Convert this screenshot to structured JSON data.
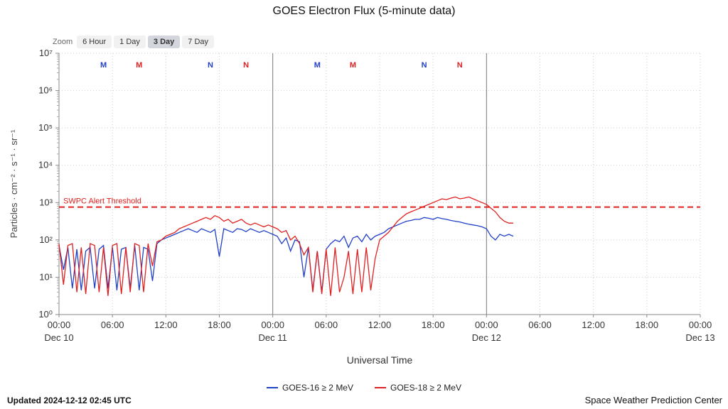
{
  "toolbar": {
    "zoom_label": "Zoom",
    "zoom_options": [
      {
        "label": "6 Hour",
        "selected": false
      },
      {
        "label": "1 Day",
        "selected": false
      },
      {
        "label": "3 Day",
        "selected": true
      },
      {
        "label": "7 Day",
        "selected": false
      }
    ]
  },
  "chart_data": {
    "type": "line",
    "title": "GOES Electron Flux (5-minute data)",
    "xlabel": "Universal Time",
    "ylabel": "Particles · cm⁻² · s⁻¹ · sr⁻¹",
    "x_axis": {
      "unit": "hours since Dec 10 00:00 UTC",
      "min": 0,
      "max": 72,
      "ticks": [
        {
          "hour": 0,
          "time": "00:00",
          "date": "Dec 10"
        },
        {
          "hour": 6,
          "time": "06:00"
        },
        {
          "hour": 12,
          "time": "12:00"
        },
        {
          "hour": 18,
          "time": "18:00"
        },
        {
          "hour": 24,
          "time": "00:00",
          "date": "Dec 11"
        },
        {
          "hour": 30,
          "time": "06:00"
        },
        {
          "hour": 36,
          "time": "12:00"
        },
        {
          "hour": 42,
          "time": "18:00"
        },
        {
          "hour": 48,
          "time": "00:00",
          "date": "Dec 12"
        },
        {
          "hour": 54,
          "time": "06:00"
        },
        {
          "hour": 60,
          "time": "12:00"
        },
        {
          "hour": 66,
          "time": "18:00"
        },
        {
          "hour": 72,
          "time": "00:00",
          "date": "Dec 13"
        }
      ],
      "day_boundaries": [
        24,
        48
      ]
    },
    "y_axis": {
      "scale": "log10",
      "min_exp": 0,
      "max_exp": 7,
      "tick_labels": [
        "10⁰",
        "10¹",
        "10²",
        "10³",
        "10⁴",
        "10⁵",
        "10⁶",
        "10⁷"
      ]
    },
    "threshold": {
      "label": "SWPC Alert Threshold",
      "log10_value": 2.88,
      "color": "#e02020"
    },
    "satellite_markers": [
      {
        "label": "M",
        "hour": 5,
        "color": "#2040c8"
      },
      {
        "label": "M",
        "hour": 9,
        "color": "#e02020"
      },
      {
        "label": "N",
        "hour": 17,
        "color": "#2040c8"
      },
      {
        "label": "N",
        "hour": 21,
        "color": "#e02020"
      },
      {
        "label": "M",
        "hour": 29,
        "color": "#2040c8"
      },
      {
        "label": "M",
        "hour": 33,
        "color": "#e02020"
      },
      {
        "label": "N",
        "hour": 41,
        "color": "#2040c8"
      },
      {
        "label": "N",
        "hour": 45,
        "color": "#e02020"
      }
    ],
    "series": [
      {
        "name": "GOES-16 ≥ 2 MeV",
        "color": "#2040c8",
        "start_hour": 0,
        "step_hours": 0.5,
        "log10_values": [
          1.85,
          1.2,
          1.8,
          0.7,
          1.75,
          0.65,
          1.7,
          1.8,
          0.7,
          1.75,
          1.85,
          0.7,
          1.8,
          0.65,
          1.75,
          1.8,
          0.7,
          1.85,
          0.65,
          1.8,
          1.75,
          0.9,
          1.9,
          2.0,
          2.05,
          2.1,
          2.15,
          2.2,
          2.25,
          2.3,
          2.25,
          2.2,
          2.3,
          2.25,
          2.2,
          2.28,
          1.55,
          2.3,
          2.25,
          2.2,
          2.3,
          2.28,
          2.22,
          2.3,
          2.25,
          2.2,
          2.25,
          2.2,
          2.15,
          2.1,
          1.9,
          2.05,
          1.7,
          2.0,
          1.95,
          1.0,
          1.8,
          0.65,
          1.7,
          0.6,
          1.75,
          1.9,
          2.0,
          1.95,
          2.1,
          1.8,
          2.05,
          2.1,
          1.95,
          2.15,
          2.0,
          2.1,
          2.15,
          2.2,
          2.3,
          2.35,
          2.4,
          2.45,
          2.5,
          2.52,
          2.55,
          2.55,
          2.6,
          2.58,
          2.55,
          2.6,
          2.57,
          2.55,
          2.52,
          2.5,
          2.48,
          2.45,
          2.42,
          2.4,
          2.38,
          2.35,
          2.3,
          2.1,
          2.0,
          2.15,
          2.1,
          2.15,
          2.1
        ]
      },
      {
        "name": "GOES-18 ≥ 2 MeV",
        "color": "#e02020",
        "start_hour": 0,
        "step_hours": 0.5,
        "log10_values": [
          1.9,
          0.8,
          1.85,
          1.9,
          0.6,
          1.8,
          0.55,
          1.9,
          1.85,
          0.6,
          1.8,
          0.5,
          1.85,
          1.9,
          0.55,
          1.8,
          0.6,
          1.9,
          1.85,
          0.6,
          1.9,
          1.3,
          1.95,
          2.0,
          2.1,
          2.15,
          2.2,
          2.3,
          2.35,
          2.4,
          2.45,
          2.5,
          2.55,
          2.6,
          2.55,
          2.65,
          2.6,
          2.5,
          2.55,
          2.45,
          2.5,
          2.55,
          2.45,
          2.4,
          2.45,
          2.4,
          2.35,
          2.4,
          2.35,
          2.3,
          2.2,
          2.25,
          2.0,
          2.1,
          1.9,
          1.6,
          1.8,
          0.6,
          1.7,
          0.55,
          1.75,
          0.5,
          1.8,
          0.6,
          1.0,
          1.7,
          0.55,
          1.75,
          0.6,
          1.8,
          0.65,
          1.5,
          2.0,
          2.1,
          2.2,
          2.35,
          2.5,
          2.6,
          2.7,
          2.75,
          2.8,
          2.85,
          2.9,
          2.95,
          3.0,
          3.05,
          3.1,
          3.08,
          3.12,
          3.15,
          3.1,
          3.12,
          3.15,
          3.1,
          3.05,
          3.0,
          2.95,
          2.85,
          2.75,
          2.6,
          2.5,
          2.45,
          2.45
        ]
      }
    ]
  },
  "footer": {
    "updated": "Updated 2024-12-12 02:45 UTC",
    "credit": "Space Weather Prediction Center"
  }
}
